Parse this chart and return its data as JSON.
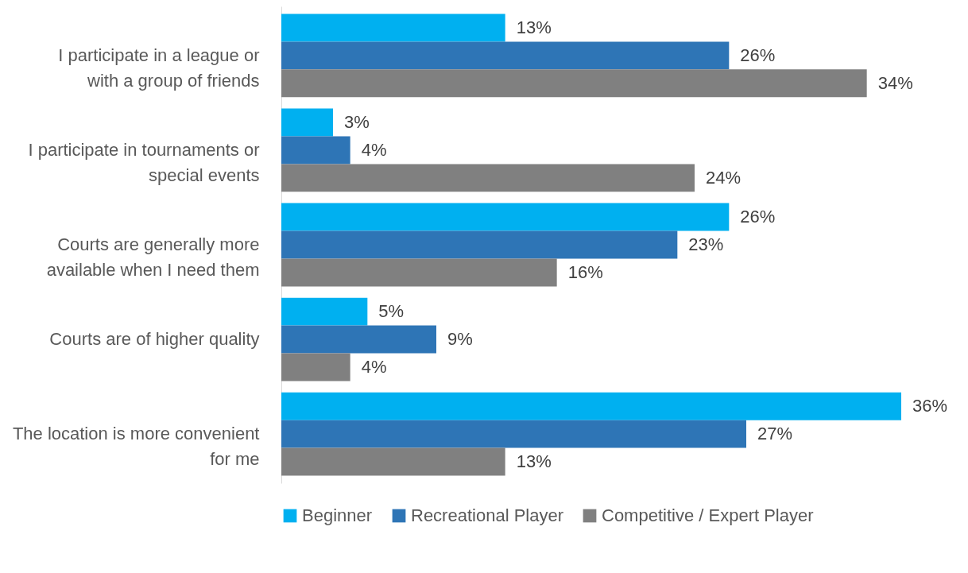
{
  "chart_data": {
    "type": "bar",
    "orientation": "horizontal",
    "legend": "bottom",
    "categories": [
      "I participate in a league or with a group of friends",
      "I participate in tournaments or special events",
      "Courts are generally more available when I need them",
      "Courts are of higher quality",
      "The location is more convenient for me"
    ],
    "series": [
      {
        "name": "Beginner",
        "color": "#00b0f0",
        "values": [
          13,
          3,
          26,
          5,
          36
        ],
        "value_labels": [
          "13%",
          "3%",
          "26%",
          "5%",
          "36%"
        ]
      },
      {
        "name": "Recreational Player",
        "color": "#2e75b6",
        "values": [
          26,
          4,
          23,
          9,
          27
        ],
        "value_labels": [
          "26%",
          "4%",
          "23%",
          "9%",
          "27%"
        ]
      },
      {
        "name": "Competitive / Expert Player",
        "color": "#808080",
        "values": [
          34,
          24,
          16,
          4,
          13
        ],
        "value_labels": [
          "34%",
          "24%",
          "16%",
          "4%",
          "13%"
        ]
      }
    ]
  }
}
